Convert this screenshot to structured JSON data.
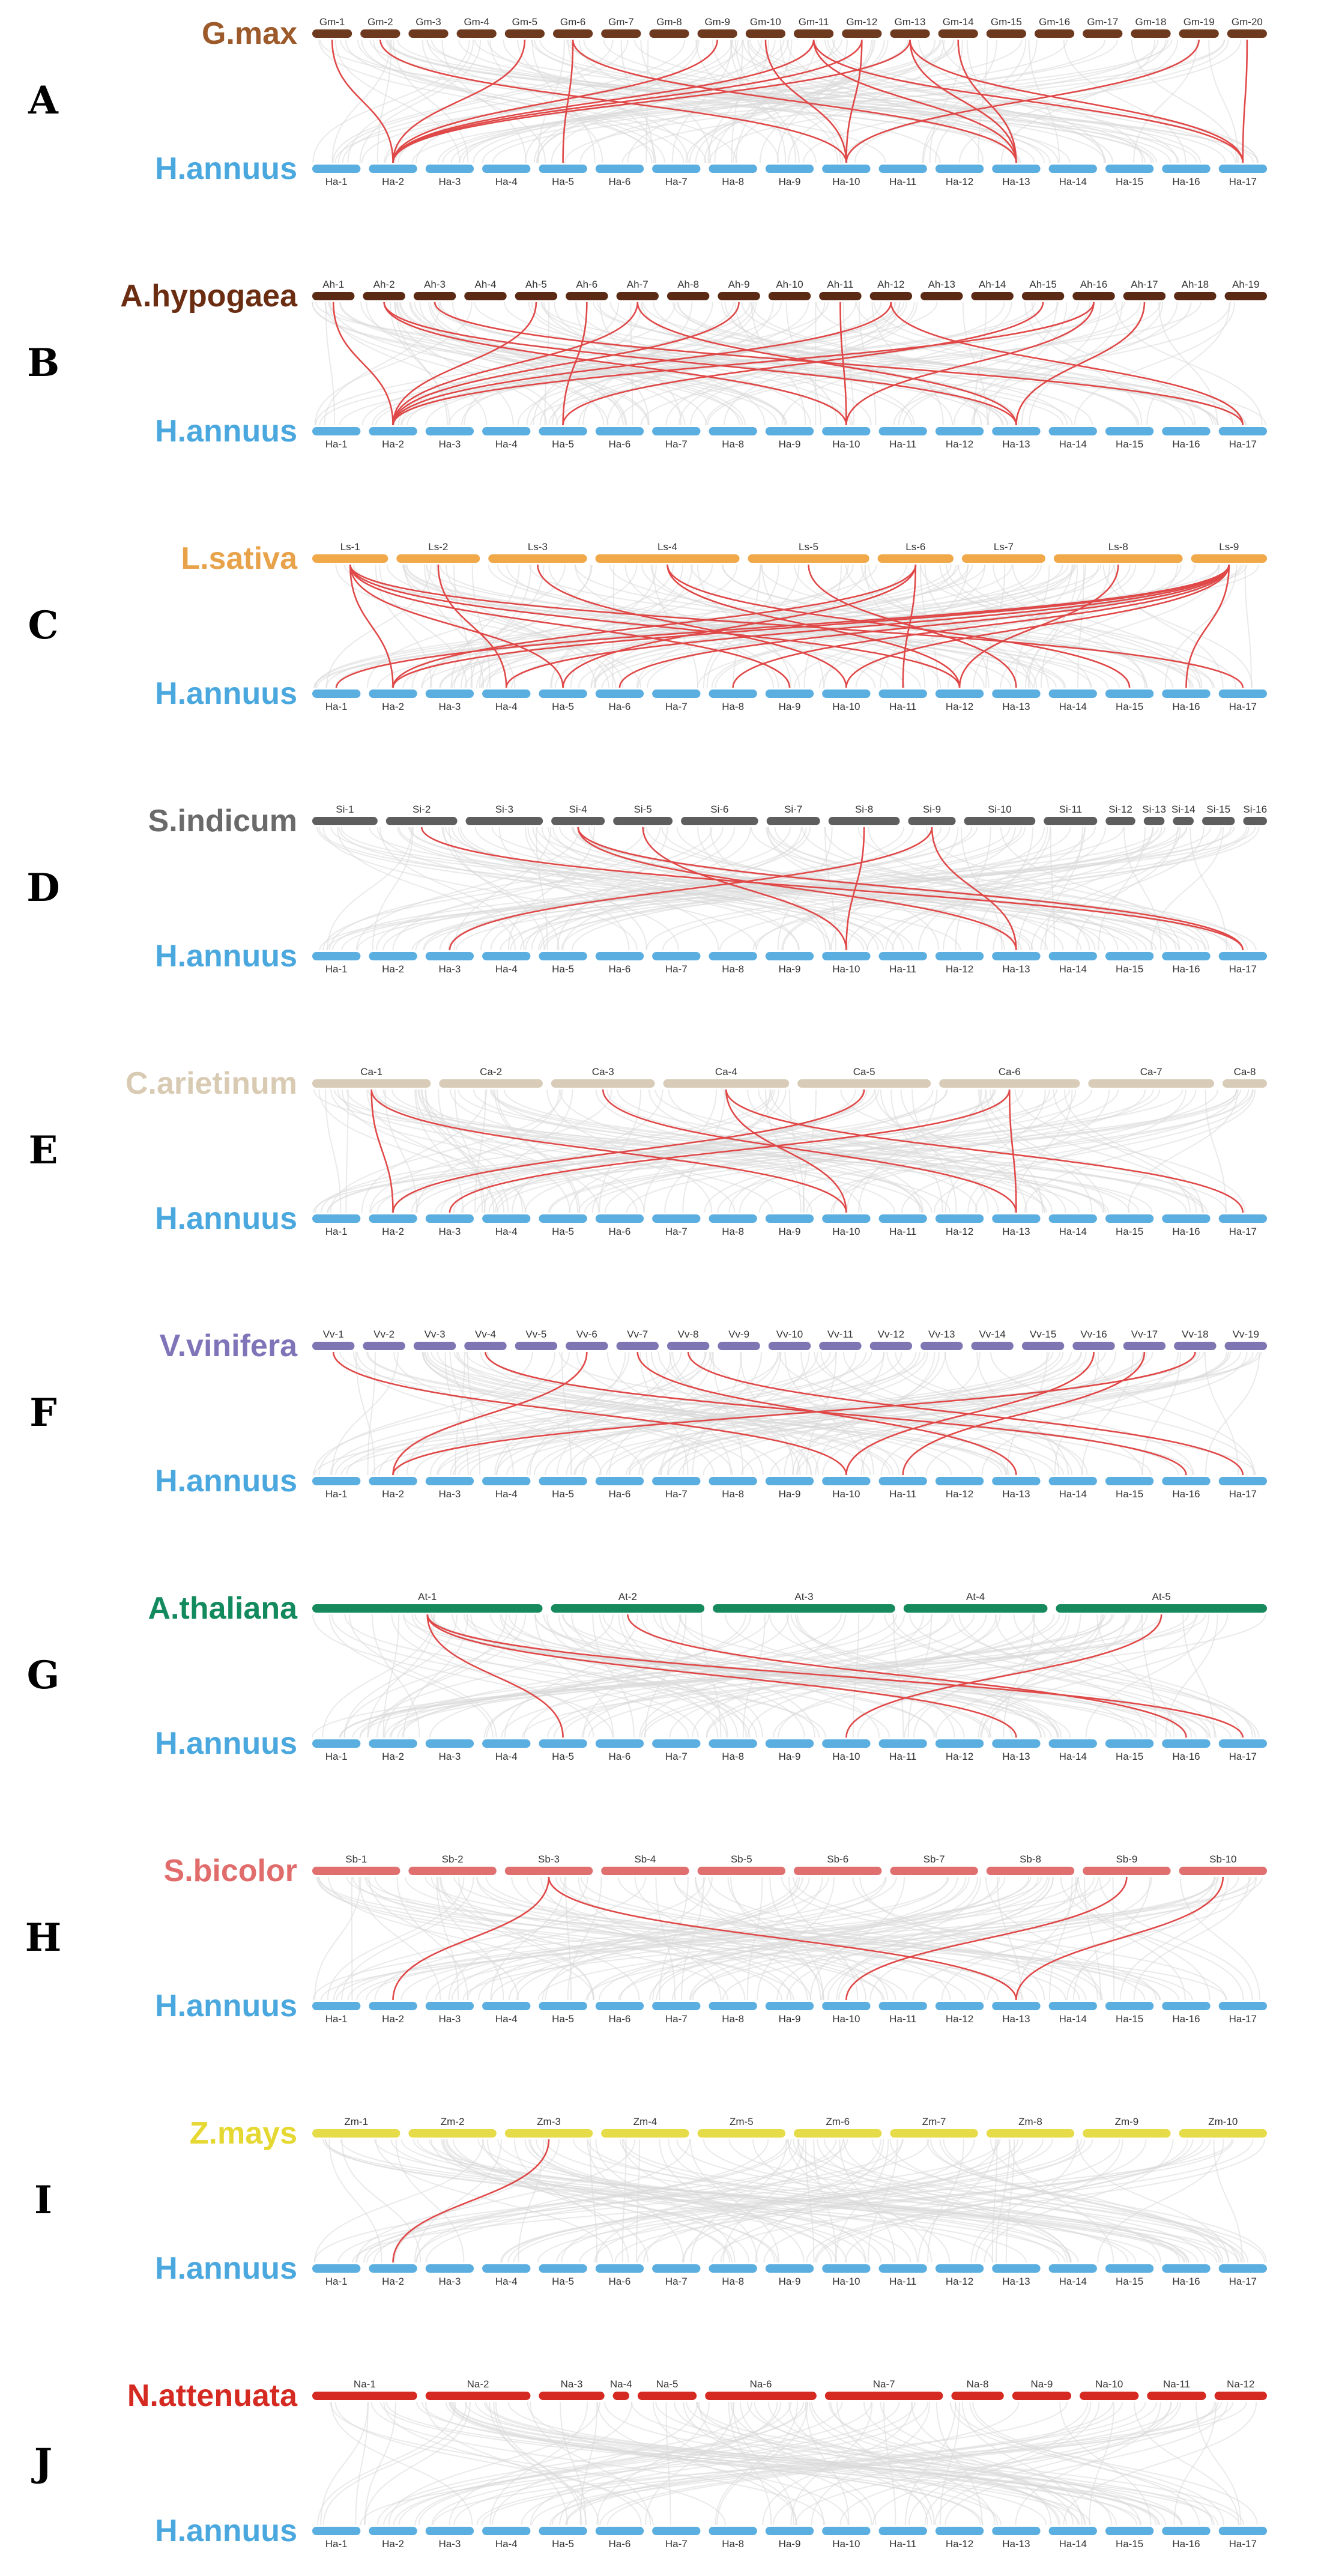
{
  "figure": {
    "panels": [
      {
        "letter": "A",
        "top_species": "G.max",
        "top_color": "#9c5a2b",
        "bar_color": "#6e3a1f",
        "top_chromosomes": [
          "Gm-1",
          "Gm-2",
          "Gm-3",
          "Gm-4",
          "Gm-5",
          "Gm-6",
          "Gm-7",
          "Gm-8",
          "Gm-9",
          "Gm-10",
          "Gm-11",
          "Gm-12",
          "Gm-13",
          "Gm-14",
          "Gm-15",
          "Gm-16",
          "Gm-17",
          "Gm-18",
          "Gm-19",
          "Gm-20"
        ],
        "bottom_species": "H.annuus",
        "bottom_chromosomes": [
          "Ha-1",
          "Ha-2",
          "Ha-3",
          "Ha-4",
          "Ha-5",
          "Ha-6",
          "Ha-7",
          "Ha-8",
          "Ha-9",
          "Ha-10",
          "Ha-11",
          "Ha-12",
          "Ha-13",
          "Ha-14",
          "Ha-15",
          "Ha-16",
          "Ha-17"
        ],
        "links": [
          [
            1,
            2
          ],
          [
            2,
            10
          ],
          [
            6,
            5
          ],
          [
            6,
            13
          ],
          [
            9,
            2
          ],
          [
            10,
            10
          ],
          [
            11,
            2
          ],
          [
            11,
            13
          ],
          [
            11,
            17
          ],
          [
            12,
            2
          ],
          [
            12,
            10
          ],
          [
            13,
            2
          ],
          [
            13,
            13
          ],
          [
            13,
            17
          ],
          [
            19,
            10
          ],
          [
            20,
            17
          ],
          [
            5,
            2
          ],
          [
            14,
            13
          ]
        ]
      },
      {
        "letter": "B",
        "top_species": "A.hypogaea",
        "top_color": "#6b2d12",
        "bar_color": "#5a2a14",
        "top_chromosomes": [
          "Ah-1",
          "Ah-2",
          "Ah-3",
          "Ah-4",
          "Ah-5",
          "Ah-6",
          "Ah-7",
          "Ah-8",
          "Ah-9",
          "Ah-10",
          "Ah-11",
          "Ah-12",
          "Ah-13",
          "Ah-14",
          "Ah-15",
          "Ah-16",
          "Ah-17",
          "Ah-18",
          "Ah-19"
        ],
        "bottom_species": "H.annuus",
        "bottom_chromosomes": [
          "Ha-1",
          "Ha-2",
          "Ha-3",
          "Ha-4",
          "Ha-5",
          "Ha-6",
          "Ha-7",
          "Ha-8",
          "Ha-9",
          "Ha-10",
          "Ha-11",
          "Ha-12",
          "Ha-13",
          "Ha-14",
          "Ha-15",
          "Ha-16",
          "Ha-17"
        ],
        "links": [
          [
            1,
            2
          ],
          [
            2,
            10
          ],
          [
            2,
            13
          ],
          [
            5,
            2
          ],
          [
            6,
            5
          ],
          [
            7,
            2
          ],
          [
            7,
            13
          ],
          [
            9,
            2
          ],
          [
            11,
            10
          ],
          [
            12,
            2
          ],
          [
            12,
            17
          ],
          [
            16,
            2
          ],
          [
            16,
            10
          ],
          [
            17,
            13
          ],
          [
            15,
            5
          ],
          [
            3,
            17
          ]
        ]
      },
      {
        "letter": "C",
        "top_species": "L.sativa",
        "top_color": "#e8a24a",
        "bar_color": "#f0a848",
        "top_chromosomes": [
          "Ls-1",
          "Ls-2",
          "Ls-3",
          "Ls-4",
          "Ls-5",
          "Ls-6",
          "Ls-7",
          "Ls-8",
          "Ls-9"
        ],
        "bottom_species": "H.annuus",
        "bottom_chromosomes": [
          "Ha-1",
          "Ha-2",
          "Ha-3",
          "Ha-4",
          "Ha-5",
          "Ha-6",
          "Ha-7",
          "Ha-8",
          "Ha-9",
          "Ha-10",
          "Ha-11",
          "Ha-12",
          "Ha-13",
          "Ha-14",
          "Ha-15",
          "Ha-16",
          "Ha-17"
        ],
        "links": [
          [
            1,
            2
          ],
          [
            1,
            5
          ],
          [
            1,
            9
          ],
          [
            1,
            12
          ],
          [
            1,
            17
          ],
          [
            2,
            4
          ],
          [
            3,
            10
          ],
          [
            4,
            12
          ],
          [
            4,
            15
          ],
          [
            5,
            13
          ],
          [
            6,
            5
          ],
          [
            6,
            11
          ],
          [
            6,
            2
          ],
          [
            9,
            1
          ],
          [
            9,
            2
          ],
          [
            9,
            4
          ],
          [
            9,
            6
          ],
          [
            9,
            8
          ],
          [
            9,
            10
          ],
          [
            9,
            16
          ],
          [
            8,
            12
          ]
        ]
      },
      {
        "letter": "D",
        "top_species": "S.indicum",
        "top_color": "#6a6a6a",
        "bar_color": "#5e5e5e",
        "top_chromosomes": [
          "Si-1",
          "Si-2",
          "Si-3",
          "Si-4",
          "Si-5",
          "Si-6",
          "Si-7",
          "Si-8",
          "Si-9",
          "Si-10",
          "Si-11",
          "Si-12",
          "Si-13",
          "Si-14",
          "Si-15",
          "Si-16"
        ],
        "bottom_species": "H.annuus",
        "bottom_chromosomes": [
          "Ha-1",
          "Ha-2",
          "Ha-3",
          "Ha-4",
          "Ha-5",
          "Ha-6",
          "Ha-7",
          "Ha-8",
          "Ha-9",
          "Ha-10",
          "Ha-11",
          "Ha-12",
          "Ha-13",
          "Ha-14",
          "Ha-15",
          "Ha-16",
          "Ha-17"
        ],
        "links": [
          [
            2,
            17
          ],
          [
            4,
            13
          ],
          [
            4,
            17
          ],
          [
            5,
            10
          ],
          [
            9,
            3
          ],
          [
            9,
            13
          ],
          [
            8,
            10
          ]
        ]
      },
      {
        "letter": "E",
        "top_species": "C.arietinum",
        "top_color": "#d9cbb3",
        "bar_color": "#d8ccb8",
        "top_chromosomes": [
          "Ca-1",
          "Ca-2",
          "Ca-3",
          "Ca-4",
          "Ca-5",
          "Ca-6",
          "Ca-7",
          "Ca-8"
        ],
        "bottom_species": "H.annuus",
        "bottom_chromosomes": [
          "Ha-1",
          "Ha-2",
          "Ha-3",
          "Ha-4",
          "Ha-5",
          "Ha-6",
          "Ha-7",
          "Ha-8",
          "Ha-9",
          "Ha-10",
          "Ha-11",
          "Ha-12",
          "Ha-13",
          "Ha-14",
          "Ha-15",
          "Ha-16",
          "Ha-17"
        ],
        "links": [
          [
            1,
            2
          ],
          [
            1,
            10
          ],
          [
            3,
            13
          ],
          [
            4,
            10
          ],
          [
            4,
            17
          ],
          [
            6,
            3
          ],
          [
            6,
            13
          ],
          [
            5,
            2
          ]
        ]
      },
      {
        "letter": "F",
        "top_species": "V.vinifera",
        "top_color": "#7f74b8",
        "bar_color": "#7e76b2",
        "top_chromosomes": [
          "Vv-1",
          "Vv-2",
          "Vv-3",
          "Vv-4",
          "Vv-5",
          "Vv-6",
          "Vv-7",
          "Vv-8",
          "Vv-9",
          "Vv-10",
          "Vv-11",
          "Vv-12",
          "Vv-13",
          "Vv-14",
          "Vv-15",
          "Vv-16",
          "Vv-17",
          "Vv-18",
          "Vv-19"
        ],
        "bottom_species": "H.annuus",
        "bottom_chromosomes": [
          "Ha-1",
          "Ha-2",
          "Ha-3",
          "Ha-4",
          "Ha-5",
          "Ha-6",
          "Ha-7",
          "Ha-8",
          "Ha-9",
          "Ha-10",
          "Ha-11",
          "Ha-12",
          "Ha-13",
          "Ha-14",
          "Ha-15",
          "Ha-16",
          "Ha-17"
        ],
        "links": [
          [
            1,
            10
          ],
          [
            4,
            16
          ],
          [
            6,
            2
          ],
          [
            7,
            13
          ],
          [
            8,
            17
          ],
          [
            16,
            10
          ],
          [
            18,
            2
          ],
          [
            17,
            11
          ]
        ]
      },
      {
        "letter": "G",
        "top_species": "A.thaliana",
        "top_color": "#138a5e",
        "bar_color": "#168a5c",
        "top_chromosomes": [
          "At-1",
          "At-2",
          "At-3",
          "At-4",
          "At-5"
        ],
        "bottom_species": "H.annuus",
        "bottom_chromosomes": [
          "Ha-1",
          "Ha-2",
          "Ha-3",
          "Ha-4",
          "Ha-5",
          "Ha-6",
          "Ha-7",
          "Ha-8",
          "Ha-9",
          "Ha-10",
          "Ha-11",
          "Ha-12",
          "Ha-13",
          "Ha-14",
          "Ha-15",
          "Ha-16",
          "Ha-17"
        ],
        "links": [
          [
            1,
            5
          ],
          [
            1,
            13
          ],
          [
            1,
            17
          ],
          [
            2,
            16
          ],
          [
            5,
            10
          ]
        ]
      },
      {
        "letter": "H",
        "top_species": "S.bicolor",
        "top_color": "#e06c6c",
        "bar_color": "#e07070",
        "top_chromosomes": [
          "Sb-1",
          "Sb-2",
          "Sb-3",
          "Sb-4",
          "Sb-5",
          "Sb-6",
          "Sb-7",
          "Sb-8",
          "Sb-9",
          "Sb-10"
        ],
        "bottom_species": "H.annuus",
        "bottom_chromosomes": [
          "Ha-1",
          "Ha-2",
          "Ha-3",
          "Ha-4",
          "Ha-5",
          "Ha-6",
          "Ha-7",
          "Ha-8",
          "Ha-9",
          "Ha-10",
          "Ha-11",
          "Ha-12",
          "Ha-13",
          "Ha-14",
          "Ha-15",
          "Ha-16",
          "Ha-17"
        ],
        "links": [
          [
            3,
            2
          ],
          [
            3,
            13
          ],
          [
            9,
            10
          ],
          [
            10,
            13
          ]
        ]
      },
      {
        "letter": "I",
        "top_species": "Z.mays",
        "top_color": "#e6d832",
        "bar_color": "#e6dc4a",
        "top_chromosomes": [
          "Zm-1",
          "Zm-2",
          "Zm-3",
          "Zm-4",
          "Zm-5",
          "Zm-6",
          "Zm-7",
          "Zm-8",
          "Zm-9",
          "Zm-10"
        ],
        "bottom_species": "H.annuus",
        "bottom_chromosomes": [
          "Ha-1",
          "Ha-2",
          "Ha-3",
          "Ha-4",
          "Ha-5",
          "Ha-6",
          "Ha-7",
          "Ha-8",
          "Ha-9",
          "Ha-10",
          "Ha-11",
          "Ha-12",
          "Ha-13",
          "Ha-14",
          "Ha-15",
          "Ha-16",
          "Ha-17"
        ],
        "links": [
          [
            3,
            2
          ]
        ]
      },
      {
        "letter": "J",
        "top_species": "N.attenuata",
        "top_color": "#d42a22",
        "bar_color": "#d42a22",
        "top_chromosomes": [
          "Na-1",
          "Na-2",
          "Na-3",
          "Na-4",
          "Na-5",
          "Na-6",
          "Na-7",
          "Na-8",
          "Na-9",
          "Na-10",
          "Na-11",
          "Na-12"
        ],
        "bottom_species": "H.annuus",
        "bottom_chromosomes": [
          "Ha-1",
          "Ha-2",
          "Ha-3",
          "Ha-4",
          "Ha-5",
          "Ha-6",
          "Ha-7",
          "Ha-8",
          "Ha-9",
          "Ha-10",
          "Ha-11",
          "Ha-12",
          "Ha-13",
          "Ha-14",
          "Ha-15",
          "Ha-16",
          "Ha-17"
        ],
        "links": []
      }
    ],
    "bottom_species_color": "#4aa8de",
    "bottom_bar_color": "#5aaee0",
    "link_color": "#e04848",
    "background_link_color": "#d9d9d9"
  }
}
